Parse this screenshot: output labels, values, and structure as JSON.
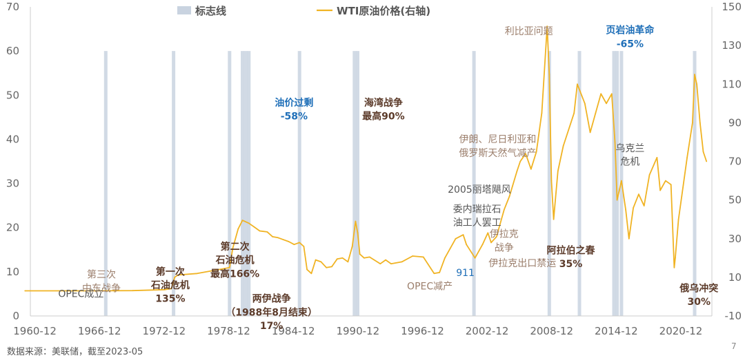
{
  "chart_data": {
    "type": "line",
    "series": [
      {
        "name": "WTI原油价格(右轴)",
        "axis": "right",
        "color": "#F0B323",
        "x": [
          1960.0,
          1966.0,
          1970.0,
          1973.0,
          1973.6,
          1973.9,
          1974.2,
          1976.0,
          1978.0,
          1979.0,
          1979.3,
          1979.8,
          1980.2,
          1980.8,
          1981.3,
          1981.8,
          1982.5,
          1983.0,
          1983.5,
          1984.0,
          1984.5,
          1985.0,
          1985.5,
          1985.9,
          1986.2,
          1986.6,
          1987.0,
          1987.5,
          1988.0,
          1988.5,
          1989.0,
          1989.5,
          1990.0,
          1990.4,
          1990.7,
          1990.9,
          1991.1,
          1991.5,
          1992.0,
          1993.0,
          1993.5,
          1994.0,
          1995.0,
          1996.0,
          1997.0,
          1998.0,
          1998.5,
          1999.0,
          1999.5,
          2000.0,
          2000.7,
          2001.0,
          2001.8,
          2002.5,
          2003.0,
          2003.3,
          2003.8,
          2004.5,
          2005.0,
          2005.7,
          2006.0,
          2006.5,
          2007.0,
          2007.5,
          2008.0,
          2008.5,
          2008.7,
          2008.9,
          2009.1,
          2009.5,
          2010.0,
          2011.0,
          2011.3,
          2012.0,
          2012.5,
          2013.0,
          2013.5,
          2014.0,
          2014.5,
          2014.8,
          2015.0,
          2015.4,
          2015.8,
          2016.1,
          2016.5,
          2017.0,
          2017.5,
          2018.0,
          2018.7,
          2019.0,
          2019.5,
          2020.0,
          2020.3,
          2020.4,
          2020.7,
          2021.0,
          2021.5,
          2022.0,
          2022.2,
          2022.4,
          2022.7,
          2023.0,
          2023.3
        ],
        "values": [
          3.0,
          3.0,
          3.1,
          3.6,
          4.2,
          10.0,
          11.2,
          12.0,
          14.0,
          15.0,
          25.0,
          35.0,
          39.5,
          38.0,
          36.0,
          34.0,
          33.5,
          31.0,
          30.5,
          29.5,
          28.5,
          27.0,
          28.0,
          26.0,
          14.0,
          12.0,
          19.0,
          18.0,
          15.0,
          15.5,
          19.5,
          20.0,
          18.0,
          26.0,
          39.0,
          33.0,
          22.0,
          20.0,
          20.5,
          17.0,
          19.0,
          17.0,
          18.0,
          21.0,
          20.5,
          12.0,
          12.5,
          20.0,
          25.0,
          30.0,
          32.0,
          27.0,
          20.0,
          27.0,
          33.0,
          28.0,
          31.0,
          45.0,
          52.0,
          65.0,
          70.0,
          74.0,
          66.0,
          75.0,
          95.0,
          140.0,
          115.0,
          60.0,
          40.0,
          65.0,
          78.0,
          95.0,
          110.0,
          100.0,
          85.0,
          95.0,
          105.0,
          100.0,
          105.0,
          80.0,
          50.0,
          60.0,
          45.0,
          30.0,
          46.0,
          53.0,
          47.0,
          63.0,
          72.0,
          55.0,
          60.0,
          58.0,
          15.0,
          20.0,
          40.0,
          52.0,
          72.0,
          90.0,
          115.0,
          110.0,
          90.0,
          75.0,
          70.0
        ]
      }
    ],
    "markers": [
      1967.5,
      1973.8,
      1979.0,
      1980.2,
      1980.5,
      1980.8,
      1985.5,
      1990.6,
      1990.9,
      2001.7,
      2008.7,
      2011.5,
      2014.7,
      2015.0,
      2015.4,
      2022.2
    ],
    "xlim": [
      1960.5,
      2023.8
    ],
    "x_ticks": [
      "1960-12",
      "1966-12",
      "1972-12",
      "1978-12",
      "1984-12",
      "1990-12",
      "1996-12",
      "2002-12",
      "2008-12",
      "2014-12",
      "2020-12"
    ],
    "x_tick_values": [
      1960.92,
      1966.92,
      1972.92,
      1978.92,
      1984.92,
      1990.92,
      1996.92,
      2002.92,
      2008.92,
      2014.92,
      2020.92
    ],
    "y_left": {
      "ylim": [
        0,
        70
      ],
      "ticks": [
        "0",
        "10",
        "20",
        "30",
        "40",
        "50",
        "60",
        "70"
      ]
    },
    "y_right": {
      "ylim": [
        -10,
        150
      ],
      "ticks": [
        "-10",
        "10",
        "30",
        "50",
        "70",
        "90",
        "110",
        "130",
        "150"
      ]
    },
    "grid": false,
    "legend_position": "top-center",
    "legend": [
      {
        "label": "标志线",
        "kind": "bar",
        "color": "#C9D3E0"
      },
      {
        "label": "WTI原油价格(右轴)",
        "kind": "line",
        "color": "#F0B323"
      }
    ],
    "annotations": [
      {
        "text": "OPEC成立",
        "x": 1965.2,
        "y": 1.5,
        "color": "#555555",
        "bold": false
      },
      {
        "text": "第三次",
        "x": 1967.1,
        "y": 11.5,
        "color": "#9B7E6B",
        "bold": false
      },
      {
        "text": "中东战争",
        "x": 1967.1,
        "y": 4.5,
        "color": "#9B7E6B",
        "bold": false
      },
      {
        "text": "第一次",
        "x": 1973.5,
        "y": 13.0,
        "color": "#5B3A29",
        "bold": true
      },
      {
        "text": "石油危机",
        "x": 1973.5,
        "y": 6.0,
        "color": "#5B3A29",
        "bold": true
      },
      {
        "text": "135%",
        "x": 1973.5,
        "y": -1.0,
        "color": "#5B3A29",
        "bold": true
      },
      {
        "text": "第二次",
        "x": 1979.5,
        "y": 26.0,
        "color": "#5B3A29",
        "bold": true
      },
      {
        "text": "石油危机",
        "x": 1979.5,
        "y": 19.0,
        "color": "#5B3A29",
        "bold": true
      },
      {
        "text": "最高166%",
        "x": 1979.5,
        "y": 12.0,
        "color": "#5B3A29",
        "bold": true
      },
      {
        "text": "两伊战争",
        "x": 1982.9,
        "y": -1.0,
        "color": "#5B3A29",
        "bold": true
      },
      {
        "text": "（1988年8月结束）",
        "x": 1982.9,
        "y": -8.0,
        "color": "#5B3A29",
        "bold": true
      },
      {
        "text": "17%",
        "x": 1982.9,
        "y": -15.0,
        "color": "#5B3A29",
        "bold": true
      },
      {
        "text": "油价过剩",
        "x": 1985.0,
        "y": 100.5,
        "color": "#1F6FB8",
        "bold": true
      },
      {
        "text": "-58%",
        "x": 1985.0,
        "y": 93.5,
        "color": "#1F6FB8",
        "bold": true
      },
      {
        "text": "海湾战争",
        "x": 1993.3,
        "y": 100.5,
        "color": "#5B3A29",
        "bold": true
      },
      {
        "text": "最高90%",
        "x": 1993.3,
        "y": 93.5,
        "color": "#5B3A29",
        "bold": true
      },
      {
        "text": "OPEC减产",
        "x": 1997.6,
        "y": 5.5,
        "color": "#9B7E6B",
        "bold": false
      },
      {
        "text": "伊朗、尼日利亚和",
        "x": 2003.9,
        "y": 81.5,
        "color": "#9B7E6B",
        "bold": false
      },
      {
        "text": "俄罗斯天然气减产",
        "x": 2003.9,
        "y": 74.5,
        "color": "#9B7E6B",
        "bold": false
      },
      {
        "text": "2005丽塔飓风",
        "x": 2002.2,
        "y": 55.5,
        "color": "#555555",
        "bold": false
      },
      {
        "text": "委内瑞拉石",
        "x": 2002.0,
        "y": 45.5,
        "color": "#555555",
        "bold": false
      },
      {
        "text": "油工人罢工",
        "x": 2002.0,
        "y": 38.5,
        "color": "#555555",
        "bold": false
      },
      {
        "text": "伊拉克",
        "x": 2004.5,
        "y": 32.5,
        "color": "#9B7E6B",
        "bold": false
      },
      {
        "text": "战争",
        "x": 2004.5,
        "y": 25.5,
        "color": "#9B7E6B",
        "bold": false
      },
      {
        "text": "911",
        "x": 2000.9,
        "y": 12.5,
        "color": "#1F6FB8",
        "bold": false
      },
      {
        "text": "伊拉克出口禁运",
        "x": 2006.2,
        "y": 17.5,
        "color": "#9B7E6B",
        "bold": false
      },
      {
        "text": "利比亚问题",
        "x": 2006.8,
        "y": 137.5,
        "color": "#9B7E6B",
        "bold": false
      },
      {
        "text": "页岩油革命",
        "x": 2016.2,
        "y": 138.0,
        "color": "#1F6FB8",
        "bold": true
      },
      {
        "text": "-65%",
        "x": 2016.2,
        "y": 131.0,
        "color": "#1F6FB8",
        "bold": true
      },
      {
        "text": "乌克兰",
        "x": 2016.2,
        "y": 77.0,
        "color": "#555555",
        "bold": false
      },
      {
        "text": "危机",
        "x": 2016.2,
        "y": 70.0,
        "color": "#555555",
        "bold": false
      },
      {
        "text": "阿拉伯之春",
        "x": 2010.7,
        "y": 24.0,
        "color": "#5B3A29",
        "bold": true
      },
      {
        "text": "35%",
        "x": 2010.7,
        "y": 17.0,
        "color": "#5B3A29",
        "bold": true
      },
      {
        "text": "俄乌冲突",
        "x": 2022.6,
        "y": 4.5,
        "color": "#5B3A29",
        "bold": true
      },
      {
        "text": "30%",
        "x": 2022.6,
        "y": -2.5,
        "color": "#5B3A29",
        "bold": true
      }
    ]
  },
  "footer": {
    "source": "数据来源：美联储，截至2023-05",
    "page_number": "7"
  }
}
